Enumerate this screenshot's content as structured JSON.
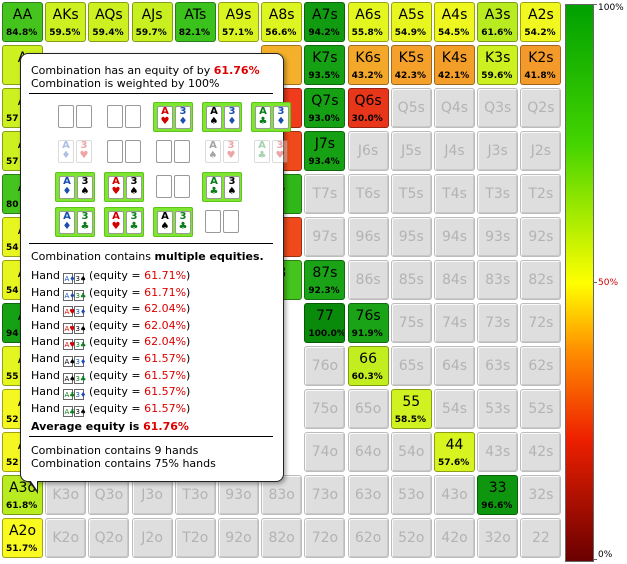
{
  "grid": {
    "cells": [
      {
        "r": 0,
        "c": 0,
        "l": "AA",
        "p": "84.8%",
        "bg": "#44c41c"
      },
      {
        "r": 0,
        "c": 1,
        "l": "AKs",
        "p": "59.5%",
        "bg": "#cdf020"
      },
      {
        "r": 0,
        "c": 2,
        "l": "AQs",
        "p": "59.4%",
        "bg": "#cdf020"
      },
      {
        "r": 0,
        "c": 3,
        "l": "AJs",
        "p": "59.7%",
        "bg": "#c8ef20"
      },
      {
        "r": 0,
        "c": 4,
        "l": "ATs",
        "p": "82.1%",
        "bg": "#3cc21c"
      },
      {
        "r": 0,
        "c": 5,
        "l": "A9s",
        "p": "57.1%",
        "bg": "#d9f420"
      },
      {
        "r": 0,
        "c": 6,
        "l": "A8s",
        "p": "56.6%",
        "bg": "#ddf520"
      },
      {
        "r": 0,
        "c": 7,
        "l": "A7s",
        "p": "94.2%",
        "bg": "#109b10"
      },
      {
        "r": 0,
        "c": 8,
        "l": "A6s",
        "p": "55.8%",
        "bg": "#e3f620"
      },
      {
        "r": 0,
        "c": 9,
        "l": "A5s",
        "p": "54.9%",
        "bg": "#e8f620"
      },
      {
        "r": 0,
        "c": 10,
        "l": "A4s",
        "p": "54.5%",
        "bg": "#eef820"
      },
      {
        "r": 0,
        "c": 11,
        "l": "A3s",
        "p": "61.6%",
        "bg": "#b8ec20"
      },
      {
        "r": 0,
        "c": 12,
        "l": "A2s",
        "p": "54.2%",
        "bg": "#f0f820"
      },
      {
        "r": 1,
        "c": 0,
        "l": "A",
        "p": "",
        "bg": "#cdf020"
      },
      {
        "r": 1,
        "c": 6,
        "l": "",
        "p": "",
        "bg": "#f4b02a"
      },
      {
        "r": 1,
        "c": 7,
        "l": "K7s",
        "p": "93.5%",
        "bg": "#16a014"
      },
      {
        "r": 1,
        "c": 8,
        "l": "K6s",
        "p": "43.2%",
        "bg": "#f4a82a"
      },
      {
        "r": 1,
        "c": 9,
        "l": "K5s",
        "p": "42.3%",
        "bg": "#f4a02a"
      },
      {
        "r": 1,
        "c": 10,
        "l": "K4s",
        "p": "42.1%",
        "bg": "#f49e2a"
      },
      {
        "r": 1,
        "c": 11,
        "l": "K3s",
        "p": "59.6%",
        "bg": "#cdf020"
      },
      {
        "r": 1,
        "c": 12,
        "l": "K2s",
        "p": "41.8%",
        "bg": "#f49a2a"
      },
      {
        "r": 2,
        "c": 0,
        "l": "A",
        "p": "57",
        "bg": "#cdf020"
      },
      {
        "r": 2,
        "c": 6,
        "l": "",
        "p": "",
        "bg": "#f03c1c"
      },
      {
        "r": 2,
        "c": 7,
        "l": "Q7s",
        "p": "93.0%",
        "bg": "#16a014"
      },
      {
        "r": 2,
        "c": 8,
        "l": "Q6s",
        "p": "30.0%",
        "bg": "#e8361a"
      },
      {
        "r": 2,
        "c": 9,
        "l": "Q5s",
        "p": "",
        "e": true
      },
      {
        "r": 2,
        "c": 10,
        "l": "Q4s",
        "p": "",
        "e": true
      },
      {
        "r": 2,
        "c": 11,
        "l": "Q3s",
        "p": "",
        "e": true
      },
      {
        "r": 2,
        "c": 12,
        "l": "Q2s",
        "p": "",
        "e": true
      },
      {
        "r": 3,
        "c": 0,
        "l": "A",
        "p": "57",
        "bg": "#cdf020"
      },
      {
        "r": 3,
        "c": 6,
        "l": "",
        "p": "",
        "bg": "#f04a1c"
      },
      {
        "r": 3,
        "c": 7,
        "l": "J7s",
        "p": "93.4%",
        "bg": "#16a014"
      },
      {
        "r": 3,
        "c": 8,
        "l": "J6s",
        "p": "",
        "e": true
      },
      {
        "r": 3,
        "c": 9,
        "l": "J5s",
        "p": "",
        "e": true
      },
      {
        "r": 3,
        "c": 10,
        "l": "J4s",
        "p": "",
        "e": true
      },
      {
        "r": 3,
        "c": 11,
        "l": "J3s",
        "p": "",
        "e": true
      },
      {
        "r": 3,
        "c": 12,
        "l": "J2s",
        "p": "",
        "e": true
      },
      {
        "r": 4,
        "c": 0,
        "l": "A",
        "p": "80",
        "bg": "#44c41c"
      },
      {
        "r": 4,
        "c": 6,
        "l": "s",
        "p": "",
        "bg": "#30b818"
      },
      {
        "r": 4,
        "c": 7,
        "l": "T7s",
        "p": "",
        "e": true
      },
      {
        "r": 4,
        "c": 8,
        "l": "T6s",
        "p": "",
        "e": true
      },
      {
        "r": 4,
        "c": 9,
        "l": "T5s",
        "p": "",
        "e": true
      },
      {
        "r": 4,
        "c": 10,
        "l": "T4s",
        "p": "",
        "e": true
      },
      {
        "r": 4,
        "c": 11,
        "l": "T3s",
        "p": "",
        "e": true
      },
      {
        "r": 4,
        "c": 12,
        "l": "T2s",
        "p": "",
        "e": true
      },
      {
        "r": 5,
        "c": 0,
        "l": "A",
        "p": "54",
        "bg": "#e8f620"
      },
      {
        "r": 5,
        "c": 6,
        "l": "",
        "p": "",
        "bg": "#f04a1c"
      },
      {
        "r": 5,
        "c": 7,
        "l": "97s",
        "p": "",
        "e": true
      },
      {
        "r": 5,
        "c": 8,
        "l": "96s",
        "p": "",
        "e": true
      },
      {
        "r": 5,
        "c": 9,
        "l": "95s",
        "p": "",
        "e": true
      },
      {
        "r": 5,
        "c": 10,
        "l": "94s",
        "p": "",
        "e": true
      },
      {
        "r": 5,
        "c": 11,
        "l": "93s",
        "p": "",
        "e": true
      },
      {
        "r": 5,
        "c": 12,
        "l": "92s",
        "p": "",
        "e": true
      },
      {
        "r": 6,
        "c": 0,
        "l": "A",
        "p": "54",
        "bg": "#e8f620"
      },
      {
        "r": 6,
        "c": 6,
        "l": "8",
        "p": "",
        "bg": "#44c41c"
      },
      {
        "r": 6,
        "c": 7,
        "l": "87s",
        "p": "92.3%",
        "bg": "#1aa316"
      },
      {
        "r": 6,
        "c": 8,
        "l": "86s",
        "p": "",
        "e": true
      },
      {
        "r": 6,
        "c": 9,
        "l": "85s",
        "p": "",
        "e": true
      },
      {
        "r": 6,
        "c": 10,
        "l": "84s",
        "p": "",
        "e": true
      },
      {
        "r": 6,
        "c": 11,
        "l": "83s",
        "p": "",
        "e": true
      },
      {
        "r": 6,
        "c": 12,
        "l": "82s",
        "p": "",
        "e": true
      },
      {
        "r": 7,
        "c": 0,
        "l": "A",
        "p": "94",
        "bg": "#16a014"
      },
      {
        "r": 7,
        "c": 7,
        "l": "77",
        "p": "100.0%",
        "bg": "#0a8a0a"
      },
      {
        "r": 7,
        "c": 8,
        "l": "76s",
        "p": "91.9%",
        "bg": "#1aa316"
      },
      {
        "r": 7,
        "c": 9,
        "l": "75s",
        "p": "",
        "e": true
      },
      {
        "r": 7,
        "c": 10,
        "l": "74s",
        "p": "",
        "e": true
      },
      {
        "r": 7,
        "c": 11,
        "l": "73s",
        "p": "",
        "e": true
      },
      {
        "r": 7,
        "c": 12,
        "l": "72s",
        "p": "",
        "e": true
      },
      {
        "r": 8,
        "c": 0,
        "l": "A",
        "p": "55",
        "bg": "#e3f620"
      },
      {
        "r": 8,
        "c": 7,
        "l": "76o",
        "p": "",
        "e": true
      },
      {
        "r": 8,
        "c": 8,
        "l": "66",
        "p": "60.3%",
        "bg": "#c2ee20"
      },
      {
        "r": 8,
        "c": 9,
        "l": "65s",
        "p": "",
        "e": true
      },
      {
        "r": 8,
        "c": 10,
        "l": "64s",
        "p": "",
        "e": true
      },
      {
        "r": 8,
        "c": 11,
        "l": "63s",
        "p": "",
        "e": true
      },
      {
        "r": 8,
        "c": 12,
        "l": "62s",
        "p": "",
        "e": true
      },
      {
        "r": 9,
        "c": 0,
        "l": "A",
        "p": "52",
        "bg": "#f4f820"
      },
      {
        "r": 9,
        "c": 7,
        "l": "75o",
        "p": "",
        "e": true
      },
      {
        "r": 9,
        "c": 8,
        "l": "65o",
        "p": "",
        "e": true
      },
      {
        "r": 9,
        "c": 9,
        "l": "55",
        "p": "58.5%",
        "bg": "#d0f220"
      },
      {
        "r": 9,
        "c": 10,
        "l": "54s",
        "p": "",
        "e": true
      },
      {
        "r": 9,
        "c": 11,
        "l": "53s",
        "p": "",
        "e": true
      },
      {
        "r": 9,
        "c": 12,
        "l": "52s",
        "p": "",
        "e": true
      },
      {
        "r": 10,
        "c": 0,
        "l": "A",
        "p": "52",
        "bg": "#f4f820"
      },
      {
        "r": 10,
        "c": 7,
        "l": "74o",
        "p": "",
        "e": true
      },
      {
        "r": 10,
        "c": 8,
        "l": "64o",
        "p": "",
        "e": true
      },
      {
        "r": 10,
        "c": 9,
        "l": "54o",
        "p": "",
        "e": true
      },
      {
        "r": 10,
        "c": 10,
        "l": "44",
        "p": "57.6%",
        "bg": "#d7f320"
      },
      {
        "r": 10,
        "c": 11,
        "l": "43s",
        "p": "",
        "e": true
      },
      {
        "r": 10,
        "c": 12,
        "l": "42s",
        "p": "",
        "e": true
      },
      {
        "r": 11,
        "c": 0,
        "l": "A3o",
        "p": "61.8%",
        "bg": "#b8ec20"
      },
      {
        "r": 11,
        "c": 1,
        "l": "K3o",
        "p": "",
        "e": true
      },
      {
        "r": 11,
        "c": 2,
        "l": "Q3o",
        "p": "",
        "e": true
      },
      {
        "r": 11,
        "c": 3,
        "l": "J3o",
        "p": "",
        "e": true
      },
      {
        "r": 11,
        "c": 4,
        "l": "T3o",
        "p": "",
        "e": true
      },
      {
        "r": 11,
        "c": 5,
        "l": "93o",
        "p": "",
        "e": true
      },
      {
        "r": 11,
        "c": 6,
        "l": "83o",
        "p": "",
        "e": true
      },
      {
        "r": 11,
        "c": 7,
        "l": "73o",
        "p": "",
        "e": true
      },
      {
        "r": 11,
        "c": 8,
        "l": "63o",
        "p": "",
        "e": true
      },
      {
        "r": 11,
        "c": 9,
        "l": "53o",
        "p": "",
        "e": true
      },
      {
        "r": 11,
        "c": 10,
        "l": "43o",
        "p": "",
        "e": true
      },
      {
        "r": 11,
        "c": 11,
        "l": "33",
        "p": "96.6%",
        "bg": "#0e960e"
      },
      {
        "r": 11,
        "c": 12,
        "l": "32s",
        "p": "",
        "e": true
      },
      {
        "r": 12,
        "c": 0,
        "l": "A2o",
        "p": "51.7%",
        "bg": "#f8fa20"
      },
      {
        "r": 12,
        "c": 1,
        "l": "K2o",
        "p": "",
        "e": true
      },
      {
        "r": 12,
        "c": 2,
        "l": "Q2o",
        "p": "",
        "e": true
      },
      {
        "r": 12,
        "c": 3,
        "l": "J2o",
        "p": "",
        "e": true
      },
      {
        "r": 12,
        "c": 4,
        "l": "T2o",
        "p": "",
        "e": true
      },
      {
        "r": 12,
        "c": 5,
        "l": "92o",
        "p": "",
        "e": true
      },
      {
        "r": 12,
        "c": 6,
        "l": "82o",
        "p": "",
        "e": true
      },
      {
        "r": 12,
        "c": 7,
        "l": "72o",
        "p": "",
        "e": true
      },
      {
        "r": 12,
        "c": 8,
        "l": "62o",
        "p": "",
        "e": true
      },
      {
        "r": 12,
        "c": 9,
        "l": "52o",
        "p": "",
        "e": true
      },
      {
        "r": 12,
        "c": 10,
        "l": "42o",
        "p": "",
        "e": true
      },
      {
        "r": 12,
        "c": 11,
        "l": "32o",
        "p": "",
        "e": true
      },
      {
        "r": 12,
        "c": 12,
        "l": "22",
        "p": "",
        "e": true
      }
    ]
  },
  "legend": {
    "top_label": "100%",
    "mid_label": "50%",
    "bottom_label": "0%"
  },
  "tooltip": {
    "equity_prefix": "Combination has an equity of by ",
    "equity_value": "61.76%",
    "weight_line": "Combination is weighted by 100%",
    "combos": [
      [
        {
          "hl": false
        },
        {
          "hl": false
        },
        {
          "hl": true,
          "cards": [
            [
              "A",
              "♥",
              "red"
            ],
            [
              "3",
              "♦",
              "blue"
            ]
          ]
        },
        {
          "hl": true,
          "cards": [
            [
              "A",
              "♠",
              "black"
            ],
            [
              "3",
              "♦",
              "blue"
            ]
          ]
        },
        {
          "hl": true,
          "cards": [
            [
              "A",
              "♣",
              "green"
            ],
            [
              "3",
              "♦",
              "blue"
            ]
          ]
        }
      ],
      [
        {
          "hl": false,
          "dim": true,
          "cards": [
            [
              "A",
              "♦",
              "blue"
            ],
            [
              "3",
              "♥",
              "red"
            ]
          ]
        },
        {
          "hl": false
        },
        {
          "hl": false
        },
        {
          "hl": false,
          "dim": true,
          "cards": [
            [
              "A",
              "♠",
              "black"
            ],
            [
              "3",
              "♥",
              "red"
            ]
          ]
        },
        {
          "hl": false,
          "dim": true,
          "cards": [
            [
              "A",
              "♣",
              "green"
            ],
            [
              "3",
              "♥",
              "red"
            ]
          ]
        }
      ],
      [
        {
          "hl": true,
          "cards": [
            [
              "A",
              "♦",
              "blue"
            ],
            [
              "3",
              "♠",
              "black"
            ]
          ]
        },
        {
          "hl": true,
          "cards": [
            [
              "A",
              "♥",
              "red"
            ],
            [
              "3",
              "♠",
              "black"
            ]
          ]
        },
        {
          "hl": false
        },
        {
          "hl": true,
          "cards": [
            [
              "A",
              "♣",
              "green"
            ],
            [
              "3",
              "♠",
              "black"
            ]
          ]
        },
        {
          "hl": false,
          "hidden": true
        }
      ],
      [
        {
          "hl": true,
          "cards": [
            [
              "A",
              "♦",
              "blue"
            ],
            [
              "3",
              "♣",
              "green"
            ]
          ]
        },
        {
          "hl": true,
          "cards": [
            [
              "A",
              "♥",
              "red"
            ],
            [
              "3",
              "♣",
              "green"
            ]
          ]
        },
        {
          "hl": true,
          "cards": [
            [
              "A",
              "♠",
              "black"
            ],
            [
              "3",
              "♣",
              "green"
            ]
          ]
        },
        {
          "hl": false
        },
        {
          "hl": false,
          "hidden": true
        }
      ]
    ],
    "multi_prefix": "Combination contains ",
    "multi_bold": "multiple equities.",
    "hands": [
      {
        "label": "Hand",
        "c1": [
          "A",
          "♦",
          "blue"
        ],
        "c2": [
          "3",
          "♠",
          "black"
        ],
        "eq_prefix": "(equity = ",
        "eq": "61.71%",
        "eq_suffix": ")"
      },
      {
        "label": "Hand",
        "c1": [
          "A",
          "♦",
          "blue"
        ],
        "c2": [
          "3",
          "♣",
          "green"
        ],
        "eq_prefix": "(equity = ",
        "eq": "61.71%",
        "eq_suffix": ")"
      },
      {
        "label": "Hand",
        "c1": [
          "A",
          "♥",
          "red"
        ],
        "c2": [
          "3",
          "♦",
          "blue"
        ],
        "eq_prefix": "(equity = ",
        "eq": "62.04%",
        "eq_suffix": ")"
      },
      {
        "label": "Hand",
        "c1": [
          "A",
          "♥",
          "red"
        ],
        "c2": [
          "3",
          "♠",
          "black"
        ],
        "eq_prefix": "(equity = ",
        "eq": "62.04%",
        "eq_suffix": ")"
      },
      {
        "label": "Hand",
        "c1": [
          "A",
          "♥",
          "red"
        ],
        "c2": [
          "3",
          "♣",
          "green"
        ],
        "eq_prefix": "(equity = ",
        "eq": "62.04%",
        "eq_suffix": ")"
      },
      {
        "label": "Hand",
        "c1": [
          "A",
          "♠",
          "black"
        ],
        "c2": [
          "3",
          "♦",
          "blue"
        ],
        "eq_prefix": "(equity = ",
        "eq": "61.57%",
        "eq_suffix": ")"
      },
      {
        "label": "Hand",
        "c1": [
          "A",
          "♠",
          "black"
        ],
        "c2": [
          "3",
          "♣",
          "green"
        ],
        "eq_prefix": "(equity = ",
        "eq": "61.57%",
        "eq_suffix": ")"
      },
      {
        "label": "Hand",
        "c1": [
          "A",
          "♣",
          "green"
        ],
        "c2": [
          "3",
          "♦",
          "blue"
        ],
        "eq_prefix": "(equity = ",
        "eq": "61.57%",
        "eq_suffix": ")"
      },
      {
        "label": "Hand",
        "c1": [
          "A",
          "♣",
          "green"
        ],
        "c2": [
          "3",
          "♠",
          "black"
        ],
        "eq_prefix": "(equity = ",
        "eq": "61.57%",
        "eq_suffix": ")"
      }
    ],
    "avg_prefix": "Average equity",
    "avg_mid": " is ",
    "avg_value": "61.76%",
    "count_line1": "Combination contains 9 hands",
    "count_line2": "Combination contains 75% hands"
  }
}
